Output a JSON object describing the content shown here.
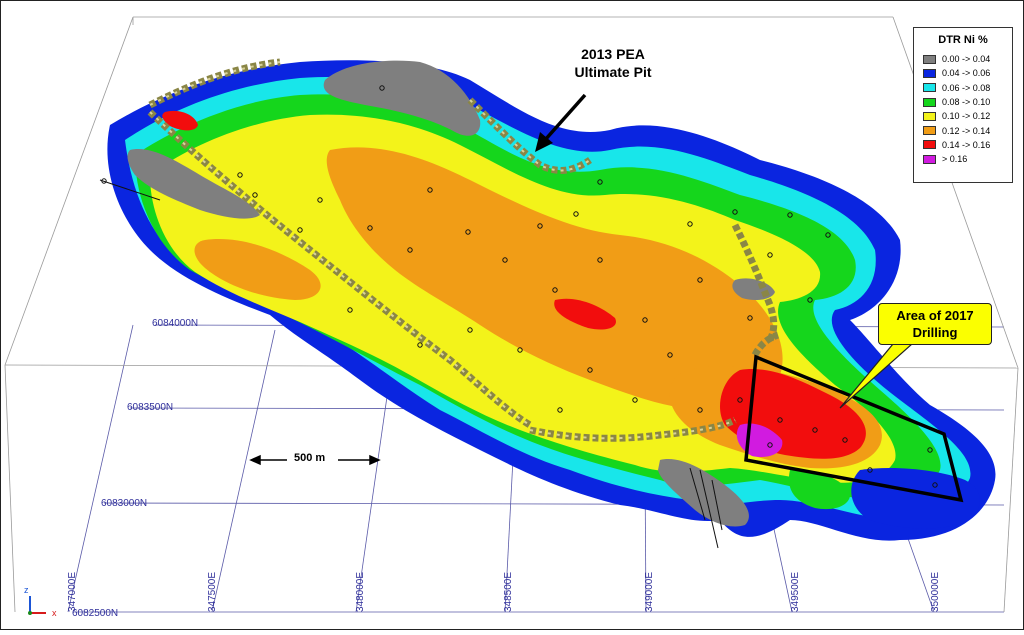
{
  "legend": {
    "title": "DTR Ni %",
    "items": [
      {
        "label": "0.00 -> 0.04",
        "color": "#7f7f7f"
      },
      {
        "label": "0.04 -> 0.06",
        "color": "#0a25e0"
      },
      {
        "label": "0.06 -> 0.08",
        "color": "#18e6ea"
      },
      {
        "label": "0.08 -> 0.10",
        "color": "#15d61c"
      },
      {
        "label": "0.10 -> 0.12",
        "color": "#f3f31a"
      },
      {
        "label": "0.12 -> 0.14",
        "color": "#f19d16"
      },
      {
        "label": "0.14 -> 0.16",
        "color": "#f20d0d"
      },
      {
        "label": "> 0.16",
        "color": "#d11be0"
      }
    ]
  },
  "annotations": {
    "pit_line1": "2013 PEA",
    "pit_line2": "Ultimate Pit",
    "drill_line1": "Area of 2017",
    "drill_line2": "Drilling",
    "scale": "500 m"
  },
  "northings": [
    "6084000N",
    "6083500N",
    "6083000N",
    "6082500N"
  ],
  "eastings": [
    "347000E",
    "347500E",
    "348000E",
    "348500E",
    "349000E",
    "349500E",
    "350000E"
  ],
  "axes_triad": {
    "x": "x",
    "z": "z"
  },
  "colors": {
    "grid": "#5a5aa8",
    "pit_wall": "#8a8646",
    "outline": "#000000"
  }
}
